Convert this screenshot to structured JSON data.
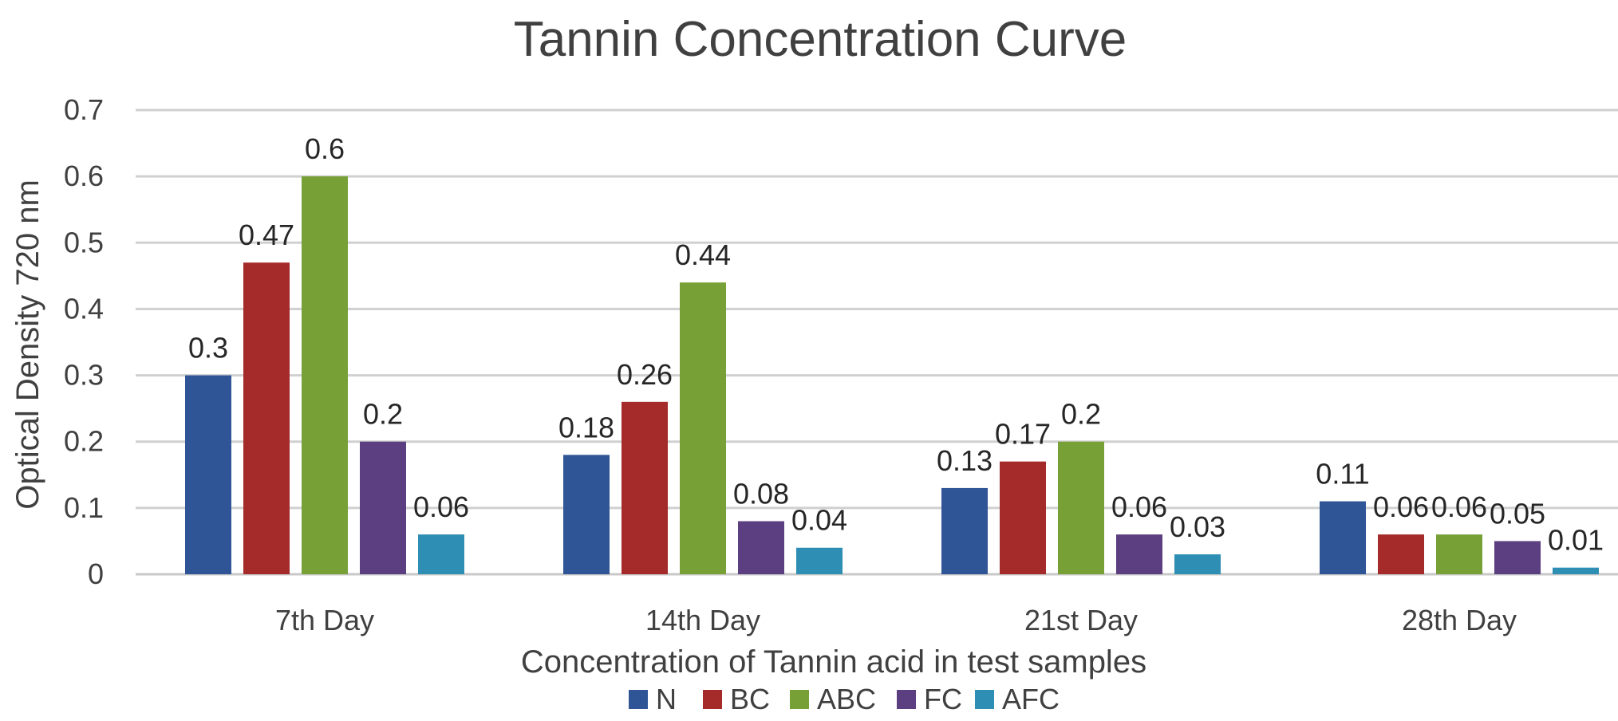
{
  "chart_data": {
    "type": "bar",
    "title": "Tannin Concentration Curve",
    "xlabel": "Concentration of Tannin acid in test samples",
    "ylabel": "Optical Density 720 nm",
    "categories": [
      "7th Day",
      "14th Day",
      "21st Day",
      "28th Day"
    ],
    "series": [
      {
        "name": "N",
        "color": "#2F5597",
        "values": [
          0.3,
          0.18,
          0.13,
          0.11
        ]
      },
      {
        "name": "BC",
        "color": "#A52A2A",
        "values": [
          0.47,
          0.26,
          0.17,
          0.06
        ]
      },
      {
        "name": "ABC",
        "color": "#77A037",
        "values": [
          0.6,
          0.44,
          0.2,
          0.06
        ]
      },
      {
        "name": "FC",
        "color": "#5B3F80",
        "values": [
          0.2,
          0.08,
          0.06,
          0.05
        ]
      },
      {
        "name": "AFC",
        "color": "#2E8EB3",
        "values": [
          0.06,
          0.04,
          0.03,
          0.01
        ]
      }
    ],
    "ylim": [
      0,
      0.7
    ],
    "yticks": [
      "0",
      "0.1",
      "0.2",
      "0.3",
      "0.4",
      "0.5",
      "0.6",
      "0.7"
    ],
    "grid": true,
    "legend_position": "bottom"
  }
}
